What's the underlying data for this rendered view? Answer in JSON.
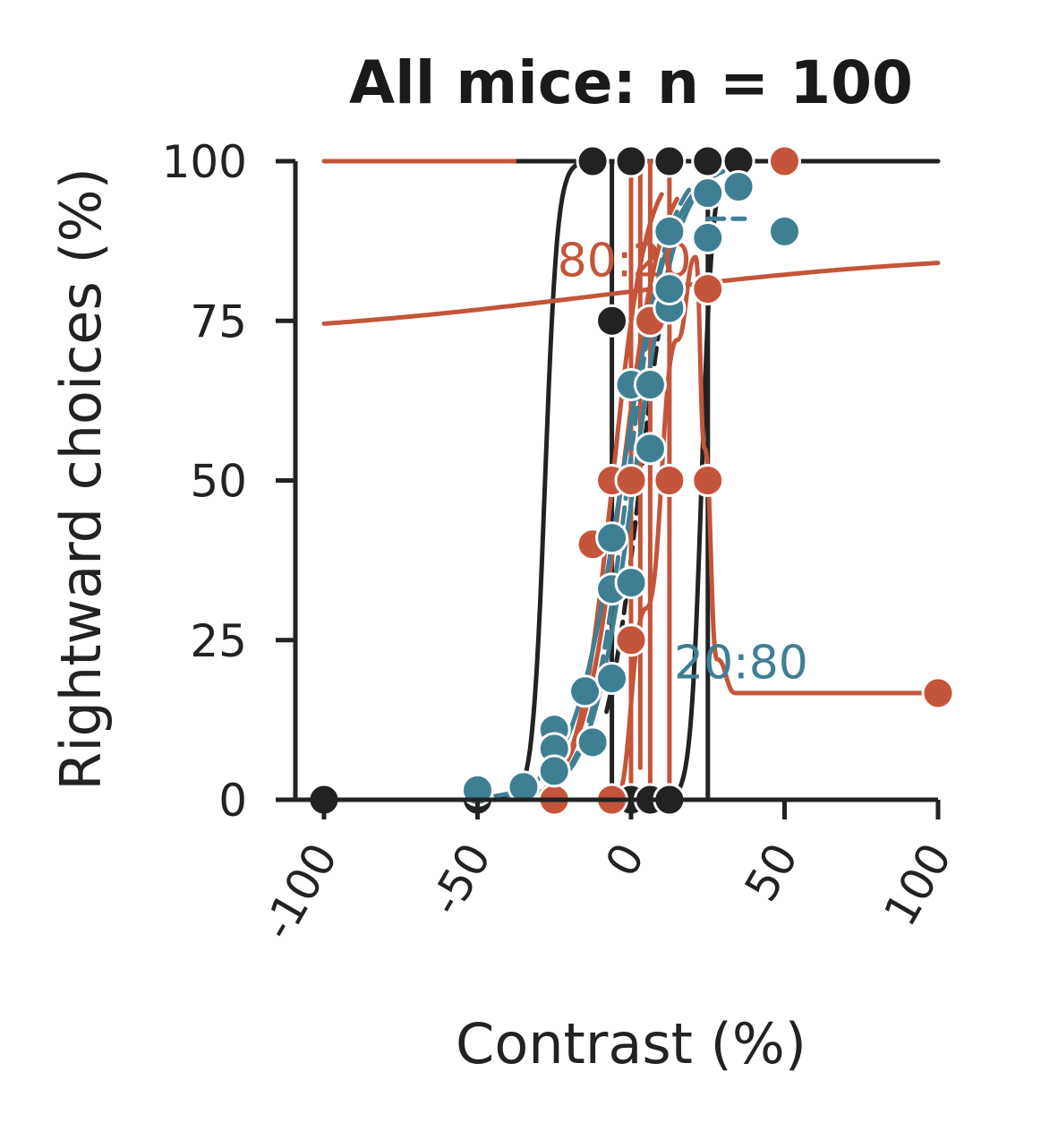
{
  "colors": {
    "black": "#222222",
    "orange": "#c4553a",
    "teal": "#3f7f93"
  },
  "chart_data": {
    "type": "line",
    "title": "All mice: n = 100",
    "xlabel": "Contrast (%)",
    "ylabel": "Rightward choices (%)",
    "xlim": [
      -110,
      102
    ],
    "ylim": [
      0,
      100
    ],
    "xticks": [
      -100,
      -50,
      0,
      50,
      100
    ],
    "xtick_labels": [
      "-100",
      "-50",
      "0",
      "50",
      "100"
    ],
    "yticks": [
      0,
      25,
      50,
      75,
      100
    ],
    "ytick_labels": [
      "0",
      "25",
      "50",
      "75",
      "100"
    ],
    "grid": false,
    "annotations": [
      {
        "text": "80:20",
        "x": -24,
        "y": 82,
        "color": "orange"
      },
      {
        "text": "20:80",
        "x": 14,
        "y": 19,
        "color": "teal"
      }
    ],
    "series": [
      {
        "color": "black",
        "points": [
          [
            -100,
            0
          ],
          [
            -50,
            0
          ],
          [
            -12.5,
            100
          ],
          [
            -6.25,
            75
          ],
          [
            0,
            100
          ],
          [
            0,
            0
          ],
          [
            6.25,
            0
          ],
          [
            12.5,
            100
          ],
          [
            12.5,
            0
          ],
          [
            25,
            100
          ],
          [
            35,
            100
          ]
        ],
        "curves": [
          {
            "kind": "logistic",
            "mu": -28,
            "sigma": 2,
            "lo": 0,
            "hi": 100,
            "x_from": -100,
            "x_to": -12,
            "style": "solid"
          },
          {
            "kind": "logistic",
            "mu": 23,
            "sigma": 1.8,
            "lo": 0,
            "hi": 100,
            "x_from": 0,
            "x_to": 28,
            "style": "solid"
          },
          {
            "kind": "logistic",
            "mu": 3,
            "sigma": 6,
            "lo": 0,
            "hi": 100,
            "x_from": -8,
            "x_to": 12,
            "style": "dashed"
          },
          {
            "kind": "segment",
            "pts": [
              [
                -38,
                100
              ],
              [
                100,
                100
              ]
            ],
            "style": "solid"
          },
          {
            "kind": "segment",
            "pts": [
              [
                -6.25,
                100
              ],
              [
                -6.25,
                0
              ]
            ],
            "style": "solid"
          },
          {
            "kind": "segment",
            "pts": [
              [
                25,
                100
              ],
              [
                25,
                0
              ]
            ],
            "style": "solid"
          }
        ]
      },
      {
        "color": "orange",
        "points": [
          [
            -25,
            0
          ],
          [
            -12.5,
            40
          ],
          [
            -6.25,
            0
          ],
          [
            -6.25,
            50
          ],
          [
            0,
            25
          ],
          [
            0,
            50
          ],
          [
            6.25,
            75
          ],
          [
            12.5,
            50
          ],
          [
            25,
            80
          ],
          [
            25,
            50
          ],
          [
            50,
            100
          ],
          [
            100,
            16.7
          ]
        ],
        "curves": [
          {
            "kind": "logistic",
            "mu": 0,
            "sigma": 250,
            "lo": 0,
            "hi": 100,
            "x_from": -100,
            "x_to": 100,
            "style": "solid",
            "note": "flat-ish"
          },
          {
            "kind": "logistic",
            "mu": -6,
            "sigma": 5.5,
            "lo": 0,
            "hi": 100,
            "x_from": -28,
            "x_to": 10,
            "style": "solid"
          },
          {
            "kind": "logistic",
            "mu": -3,
            "sigma": 6.5,
            "lo": 0,
            "hi": 100,
            "x_from": -25,
            "x_to": 15,
            "style": "solid"
          },
          {
            "kind": "segment",
            "pts": [
              [
                -100,
                100
              ],
              [
                -38,
                100
              ]
            ],
            "style": "solid"
          },
          {
            "kind": "segment",
            "pts": [
              [
                0,
                100
              ],
              [
                0,
                0
              ]
            ],
            "style": "solid"
          },
          {
            "kind": "segment",
            "pts": [
              [
                3,
                100
              ],
              [
                3,
                5
              ]
            ],
            "style": "solid"
          },
          {
            "kind": "segment",
            "pts": [
              [
                6.25,
                100
              ],
              [
                6.25,
                0
              ]
            ],
            "style": "solid"
          },
          {
            "kind": "segment",
            "pts": [
              [
                12.5,
                100
              ],
              [
                12.5,
                0
              ]
            ],
            "style": "solid"
          },
          {
            "kind": "bump",
            "pts": [
              [
                -5,
                0
              ],
              [
                5,
                30
              ],
              [
                15,
                72
              ],
              [
                21,
                85
              ],
              [
                24,
                55
              ],
              [
                28,
                22
              ],
              [
                34,
                16.7
              ],
              [
                100,
                16.7
              ]
            ],
            "style": "solid"
          }
        ]
      },
      {
        "color": "teal",
        "points": [
          [
            -50,
            1.5
          ],
          [
            -35,
            2
          ],
          [
            -25,
            11
          ],
          [
            -25,
            8
          ],
          [
            -25,
            4.5
          ],
          [
            -15,
            17
          ],
          [
            -12.5,
            9
          ],
          [
            -6.25,
            41
          ],
          [
            -6.25,
            33
          ],
          [
            -6.25,
            19
          ],
          [
            0,
            65
          ],
          [
            0,
            34
          ],
          [
            6.25,
            65
          ],
          [
            6.25,
            55
          ],
          [
            12.5,
            89
          ],
          [
            12.5,
            77
          ],
          [
            12.5,
            80
          ],
          [
            25,
            95
          ],
          [
            25,
            88
          ],
          [
            35,
            96
          ],
          [
            50,
            89
          ]
        ],
        "curves": [
          {
            "kind": "logistic",
            "mu": -3,
            "sigma": 8,
            "lo": 0,
            "hi": 100,
            "x_from": -50,
            "x_to": 30,
            "style": "solid"
          },
          {
            "kind": "logistic",
            "mu": 1,
            "sigma": 7,
            "lo": 0,
            "hi": 100,
            "x_from": -40,
            "x_to": 25,
            "style": "solid"
          },
          {
            "kind": "logistic",
            "mu": -1,
            "sigma": 6.5,
            "lo": 0,
            "hi": 100,
            "x_from": -20,
            "x_to": 20,
            "style": "dashed"
          },
          {
            "kind": "segment",
            "pts": [
              [
                25,
                91
              ],
              [
                37,
                91
              ]
            ],
            "style": "dashed"
          }
        ]
      }
    ]
  }
}
